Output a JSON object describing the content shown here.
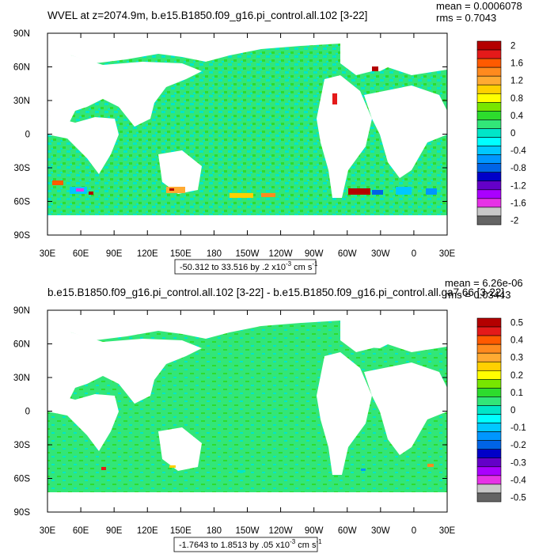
{
  "panels": [
    {
      "title": "WVEL at z=2074.9m, b.e15.B1850.f09_g16.pi_control.all.102 [3-22]",
      "stats": {
        "mean": "mean = 0.0006078",
        "rms": "rms = 0.7043"
      },
      "range_label": {
        "main": "-50.312 to 33.516 by .2 x10",
        "exp": "-3",
        "units": " cm s",
        "units_exp": "-1"
      }
    },
    {
      "title": "b.e15.B1850.f09_g16.pi_control.all.102 [3-22] - b.e15.B1850.f09_g16.pi_control.all.ga7.66 [3-22]",
      "stats": {
        "mean": "mean = 6.26e-06",
        "rms": "rms = 0.03443"
      },
      "range_label": {
        "main": "-1.7643 to 1.8513 by .05 x10",
        "exp": "-3",
        "units": " cm s",
        "units_exp": "-1"
      }
    }
  ],
  "chart_data": [
    {
      "type": "heatmap",
      "title": "WVEL at z=2074.9m, b.e15.B1850.f09_g16.pi_control.all.102 [3-22]",
      "x_ticks": [
        "30E",
        "60E",
        "90E",
        "120E",
        "150E",
        "180",
        "150W",
        "120W",
        "90W",
        "60W",
        "30W",
        "0",
        "30E"
      ],
      "y_ticks": [
        "90N",
        "60N",
        "30N",
        "0",
        "30S",
        "60S",
        "90S"
      ],
      "xlim": [
        30,
        390
      ],
      "ylim": [
        -90,
        90
      ],
      "colorbar_labels": [
        "2",
        "1.6",
        "1.2",
        "0.8",
        "0.4",
        "0",
        "-0.4",
        "-0.8",
        "-1.2",
        "-1.6",
        "-2"
      ],
      "colorbar_colors": [
        "#b40000",
        "#e41a1a",
        "#ff5a00",
        "#ff8a1e",
        "#ffaa32",
        "#ffd000",
        "#ffff00",
        "#78e600",
        "#2ddc2d",
        "#32e678",
        "#00e6c8",
        "#00ffff",
        "#00c8ff",
        "#0096ff",
        "#0064e6",
        "#0000c8",
        "#6400c8",
        "#aa00ff",
        "#e632e6",
        "#c8c8c8",
        "#646464"
      ],
      "stats": {
        "mean": 0.0006078,
        "rms": 0.7043
      },
      "contour_range": "-50.312 to 33.516 by .2 x10-3 cm s-1"
    },
    {
      "type": "heatmap",
      "title": "b.e15.B1850.f09_g16.pi_control.all.102 [3-22] - b.e15.B1850.f09_g16.pi_control.all.ga7.66 [3-22]",
      "x_ticks": [
        "30E",
        "60E",
        "90E",
        "120E",
        "150E",
        "180",
        "150W",
        "120W",
        "90W",
        "60W",
        "30W",
        "0",
        "30E"
      ],
      "y_ticks": [
        "90N",
        "60N",
        "30N",
        "0",
        "30S",
        "60S",
        "90S"
      ],
      "xlim": [
        30,
        390
      ],
      "ylim": [
        -90,
        90
      ],
      "colorbar_labels": [
        "0.5",
        "0.4",
        "0.3",
        "0.2",
        "0.1",
        "0",
        "-0.1",
        "-0.2",
        "-0.3",
        "-0.4",
        "-0.5"
      ],
      "colorbar_colors": [
        "#b40000",
        "#e41a1a",
        "#ff5a00",
        "#ff8a1e",
        "#ffaa32",
        "#ffd000",
        "#ffff00",
        "#78e600",
        "#2ddc2d",
        "#32e678",
        "#00e6c8",
        "#00ffff",
        "#00c8ff",
        "#0096ff",
        "#0064e6",
        "#0000c8",
        "#6400c8",
        "#aa00ff",
        "#e632e6",
        "#c8c8c8",
        "#646464"
      ],
      "stats": {
        "mean": 6.26e-06,
        "rms": 0.03443
      },
      "contour_range": "-1.7643 to 1.8513 by .05 x10-3 cm s-1"
    }
  ]
}
